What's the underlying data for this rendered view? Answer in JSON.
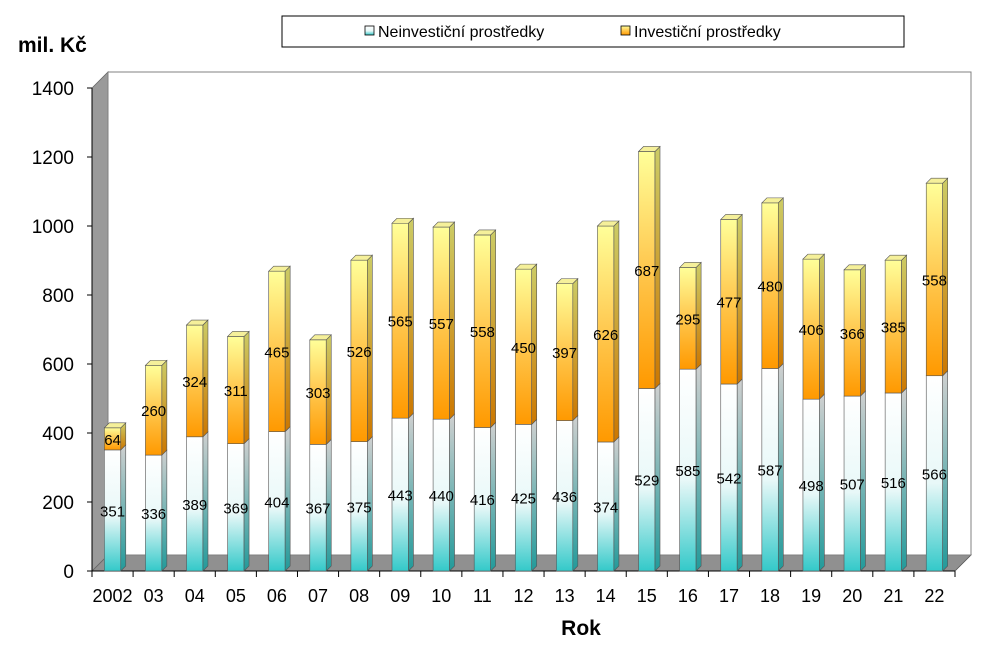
{
  "chart_data": {
    "type": "bar",
    "stacked": true,
    "categories": [
      "2002",
      "03",
      "04",
      "05",
      "06",
      "07",
      "08",
      "09",
      "10",
      "11",
      "12",
      "13",
      "14",
      "15",
      "16",
      "17",
      "18",
      "19",
      "20",
      "21",
      "22"
    ],
    "series": [
      {
        "name": "Neinvestiční prostředky",
        "values": [
          351,
          336,
          389,
          369,
          404,
          367,
          375,
          443,
          440,
          416,
          425,
          436,
          374,
          529,
          585,
          542,
          587,
          498,
          507,
          516,
          566
        ],
        "color_top": "#ffffff",
        "color_bottom": "#33c9c9"
      },
      {
        "name": "Investiční prostředky",
        "values": [
          64,
          260,
          324,
          311,
          465,
          303,
          526,
          565,
          557,
          558,
          450,
          397,
          626,
          687,
          295,
          477,
          480,
          406,
          366,
          385,
          558
        ],
        "color_top": "#ffff99",
        "color_bottom": "#ff9900"
      }
    ],
    "ylabel": "mil. Kč",
    "xlabel": "Rok",
    "ylim": [
      0,
      1400
    ],
    "yticks": [
      0,
      200,
      400,
      600,
      800,
      1000,
      1200,
      1400
    ],
    "legend_position": "top-right"
  }
}
